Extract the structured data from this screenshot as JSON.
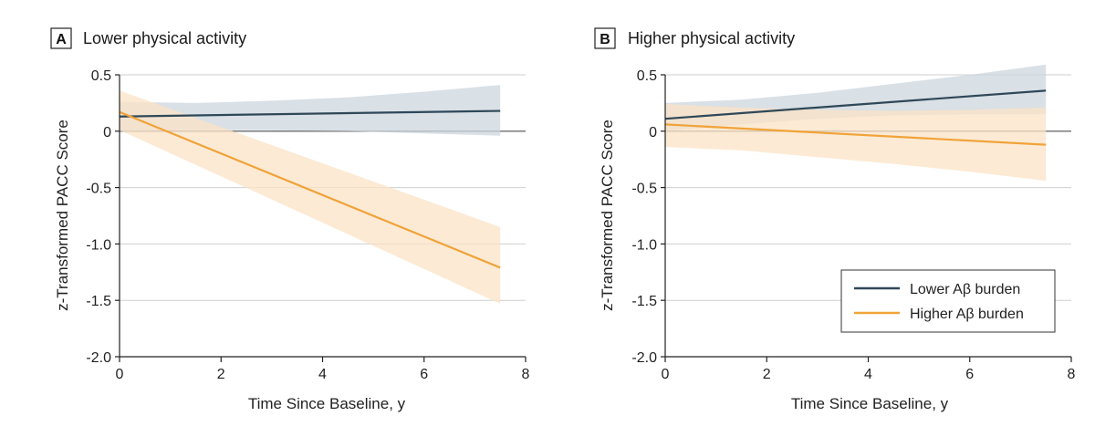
{
  "chart_data": [
    {
      "panel": "A",
      "type": "line",
      "title": "Lower physical activity",
      "xlabel": "Time Since Baseline, y",
      "ylabel": "z-Transformed PACC Score",
      "xlim": [
        0,
        8
      ],
      "ylim": [
        -2.0,
        0.5
      ],
      "x_ticks": [
        0,
        2,
        4,
        6,
        8
      ],
      "y_ticks": [
        0.5,
        0,
        -0.5,
        -1.0,
        -1.5,
        -2.0
      ],
      "x_tick_labels": [
        "0",
        "2",
        "4",
        "6",
        "8"
      ],
      "y_tick_labels": [
        "0.5",
        "0",
        "-0.5",
        "-1.0",
        "-1.5",
        "-2.0"
      ],
      "grid": true,
      "series": [
        {
          "name": "Lower Aβ burden",
          "color": "#2f4858",
          "band_color": "#ccd6dd",
          "x": [
            0,
            7.5
          ],
          "y": [
            0.13,
            0.18
          ],
          "ci_x": [
            0,
            1.5,
            3,
            4.5,
            6,
            7.5
          ],
          "ci_lower": [
            0.0,
            0.01,
            0.01,
            0.0,
            -0.02,
            -0.04
          ],
          "ci_upper": [
            0.26,
            0.25,
            0.27,
            0.3,
            0.35,
            0.41
          ]
        },
        {
          "name": "Higher Aβ burden",
          "color": "#f0a339",
          "band_color": "#fbe3c6",
          "x": [
            0,
            7.5
          ],
          "y": [
            0.17,
            -1.21
          ],
          "ci_x": [
            0,
            7.5
          ],
          "ci_lower": [
            0.01,
            -1.53
          ],
          "ci_upper": [
            0.36,
            -0.85
          ]
        }
      ]
    },
    {
      "panel": "B",
      "type": "line",
      "title": "Higher physical activity",
      "xlabel": "Time Since Baseline, y",
      "ylabel": "z-Transformed PACC Score",
      "xlim": [
        0,
        8
      ],
      "ylim": [
        -2.0,
        0.5
      ],
      "x_ticks": [
        0,
        2,
        4,
        6,
        8
      ],
      "y_ticks": [
        0.5,
        0,
        -0.5,
        -1.0,
        -1.5,
        -2.0
      ],
      "x_tick_labels": [
        "0",
        "2",
        "4",
        "6",
        "8"
      ],
      "y_tick_labels": [
        "0.5",
        "0",
        "-0.5",
        "-1.0",
        "-1.5",
        "-2.0"
      ],
      "grid": true,
      "legend": "bottom-right",
      "series": [
        {
          "name": "Lower Aβ burden",
          "color": "#2f4858",
          "band_color": "#ccd6dd",
          "x": [
            0,
            7.5
          ],
          "y": [
            0.11,
            0.36
          ],
          "ci_x": [
            0,
            1.5,
            3,
            4.5,
            6,
            7.5
          ],
          "ci_lower": [
            0.0,
            0.06,
            0.11,
            0.14,
            0.15,
            0.15
          ],
          "ci_upper": [
            0.25,
            0.28,
            0.34,
            0.42,
            0.5,
            0.59
          ]
        },
        {
          "name": "Higher Aβ burden",
          "color": "#f0a339",
          "band_color": "#fbe3c6",
          "x": [
            0,
            7.5
          ],
          "y": [
            0.06,
            -0.12
          ],
          "ci_x": [
            0,
            1.5,
            3,
            4.5,
            6,
            7.5
          ],
          "ci_lower": [
            -0.14,
            -0.17,
            -0.23,
            -0.29,
            -0.36,
            -0.44
          ],
          "ci_upper": [
            0.24,
            0.21,
            0.19,
            0.18,
            0.19,
            0.21
          ]
        }
      ]
    }
  ]
}
